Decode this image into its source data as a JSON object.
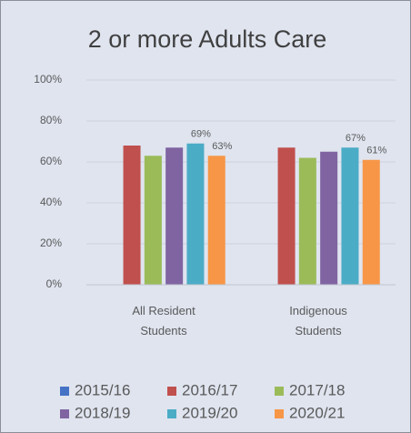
{
  "chart_data": {
    "type": "bar",
    "title": "2 or more Adults Care",
    "categories": [
      "All Resident Students",
      "Indigenous Students"
    ],
    "series": [
      {
        "name": "2015/16",
        "color": "#4472c4",
        "values": [
          null,
          null
        ]
      },
      {
        "name": "2016/17",
        "color": "#c0504d",
        "values": [
          68,
          67
        ]
      },
      {
        "name": "2017/18",
        "color": "#9bbb59",
        "values": [
          63,
          62
        ]
      },
      {
        "name": "2018/19",
        "color": "#8064a2",
        "values": [
          67,
          65
        ]
      },
      {
        "name": "2019/20",
        "color": "#4bacc6",
        "values": [
          69,
          67
        ],
        "value_labels": [
          "69%",
          "67%"
        ]
      },
      {
        "name": "2020/21",
        "color": "#f79646",
        "values": [
          63,
          61
        ],
        "value_labels": [
          "63%",
          "61%"
        ]
      }
    ],
    "ylim": [
      0,
      100
    ],
    "yticks": [
      {
        "value": 0,
        "label": "0%"
      },
      {
        "value": 20,
        "label": "20%"
      },
      {
        "value": 40,
        "label": "40%"
      },
      {
        "value": 60,
        "label": "60%"
      },
      {
        "value": 80,
        "label": "80%"
      },
      {
        "value": 100,
        "label": "100%"
      }
    ],
    "grid": true,
    "legend": "bottom"
  }
}
